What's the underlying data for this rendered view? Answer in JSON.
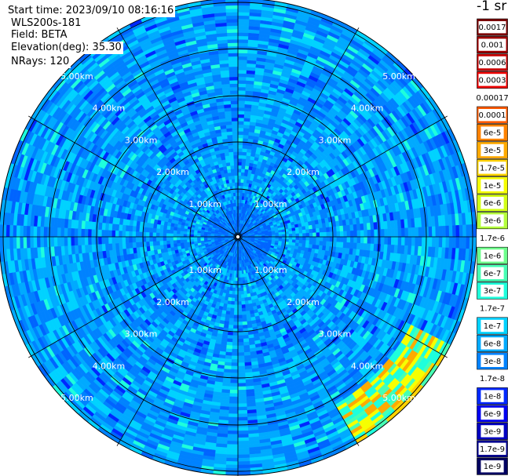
{
  "info": {
    "start_time": "Start time: 2023/09/10 08:16:16",
    "instrument": "WLS200s-181",
    "field": "Field: BETA",
    "elevation": "Elevation(deg): 35.30",
    "nrays": "NRays: 120"
  },
  "colorbar": {
    "unit": "-1 sr",
    "entries": [
      {
        "label": "0.0017",
        "color": "#7a0000",
        "text": "#ffffff"
      },
      {
        "label": "0.001",
        "color": "#a00000",
        "text": "#ffffff"
      },
      {
        "label": "0.0006",
        "color": "#c80000",
        "text": "#ffffff"
      },
      {
        "label": "0.0003",
        "color": "#f00000",
        "text": "#ffffff"
      },
      {
        "label": "0.00017",
        "color": "#ffffff",
        "text": "#000000"
      },
      {
        "label": "0.0001",
        "color": "#ff5a00",
        "text": "#ffffff"
      },
      {
        "label": "6e-5",
        "color": "#ff8200",
        "text": "#ffffff"
      },
      {
        "label": "3e-5",
        "color": "#ffaa00",
        "text": "#000000"
      },
      {
        "label": "1.7e-5",
        "color": "#ffd200",
        "text": "#000000"
      },
      {
        "label": "1e-5",
        "color": "#f6ff00",
        "text": "#000000"
      },
      {
        "label": "6e-6",
        "color": "#d2ff14",
        "text": "#000000"
      },
      {
        "label": "3e-6",
        "color": "#b4ff3c",
        "text": "#000000"
      },
      {
        "label": "1.7e-6",
        "color": "#ffffff",
        "text": "#000000"
      },
      {
        "label": "1e-6",
        "color": "#6eff8c",
        "text": "#000000"
      },
      {
        "label": "6e-7",
        "color": "#46ffb4",
        "text": "#000000"
      },
      {
        "label": "3e-7",
        "color": "#1effdc",
        "text": "#000000"
      },
      {
        "label": "1.7e-7",
        "color": "#ffffff",
        "text": "#000000"
      },
      {
        "label": "1e-7",
        "color": "#00d2ff",
        "text": "#000000"
      },
      {
        "label": "6e-8",
        "color": "#00aaff",
        "text": "#000000"
      },
      {
        "label": "3e-8",
        "color": "#0082ff",
        "text": "#000000"
      },
      {
        "label": "1.7e-8",
        "color": "#ffffff",
        "text": "#000000"
      },
      {
        "label": "1e-8",
        "color": "#0028ff",
        "text": "#ffffff"
      },
      {
        "label": "6e-9",
        "color": "#0000f0",
        "text": "#ffffff"
      },
      {
        "label": "3e-9",
        "color": "#0000c0",
        "text": "#ffffff"
      },
      {
        "label": "1.7e-9",
        "color": "#000090",
        "text": "#ffffff"
      },
      {
        "label": "1e-9",
        "color": "#000060",
        "text": "#ffffff"
      }
    ]
  },
  "chart_data": {
    "type": "heatmap",
    "projection": "polar (PPI)",
    "field": "BETA",
    "elevation_deg": 35.3,
    "nrays": 120,
    "range_rings_km": [
      1,
      2,
      3,
      4,
      5
    ],
    "ring_labels": [
      "1.00km",
      "2.00km",
      "3.00km",
      "4.00km",
      "5.00km"
    ],
    "max_range_km": 5.6,
    "azimuth_spokes_deg": [
      0,
      30,
      60,
      90,
      120,
      150,
      180,
      210,
      240,
      270,
      300,
      330
    ],
    "dominant_values": [
      "3e-8",
      "6e-8",
      "1e-7"
    ],
    "high_values_sector": {
      "azimuth_deg": [
        118,
        150
      ],
      "range_km": [
        4.6,
        5.6
      ],
      "values": [
        "1e-6",
        "3e-6",
        "1e-5",
        "6e-5"
      ]
    }
  }
}
